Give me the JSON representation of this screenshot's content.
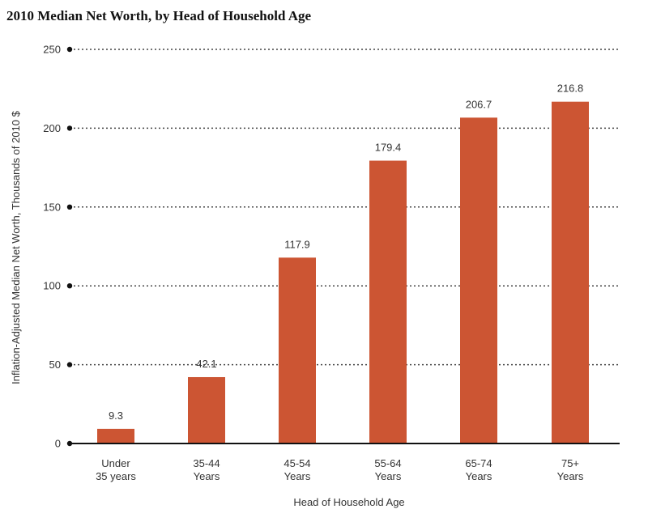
{
  "chart_data": {
    "type": "bar",
    "title": "2010 Median Net Worth, by Head of Household Age",
    "xlabel": "Head of Household Age",
    "ylabel": "Inflation-Adjusted Median Net Worth, Thousands of 2010 $",
    "categories": [
      [
        "Under",
        "35 years"
      ],
      [
        "35-44",
        "Years"
      ],
      [
        "45-54",
        "Years"
      ],
      [
        "55-64",
        "Years"
      ],
      [
        "65-74",
        "Years"
      ],
      [
        "75+",
        "Years"
      ]
    ],
    "values": [
      9.3,
      42.1,
      117.9,
      179.4,
      206.7,
      216.8
    ],
    "value_labels": [
      "9.3",
      "42.1",
      "117.9",
      "179.4",
      "206.7",
      "216.8"
    ],
    "ylim": [
      0,
      250
    ],
    "yticks": [
      0,
      50,
      100,
      150,
      200,
      250
    ],
    "grid": "dotted horizontal",
    "bar_color": "#cc5533",
    "grid_color": "#444444"
  }
}
